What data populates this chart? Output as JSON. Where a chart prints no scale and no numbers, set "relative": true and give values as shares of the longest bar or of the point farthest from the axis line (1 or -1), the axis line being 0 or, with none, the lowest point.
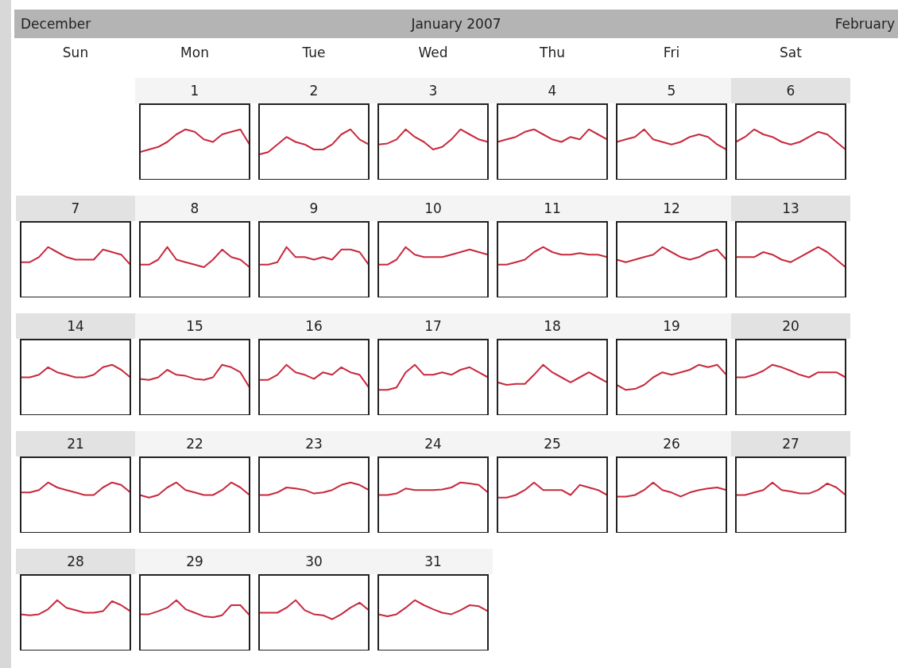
{
  "chart_data": [
    {
      "type": "other",
      "title": "January 2007",
      "annotations": [
        "December",
        "February",
        "Sun",
        "Mon",
        "Tue",
        "Wed",
        "Thu",
        "Fri",
        "Sat"
      ]
    },
    {
      "type": "line",
      "title": "1",
      "relative": true,
      "color": "#c8283c",
      "categories": [
        null,
        null,
        null,
        null,
        null,
        null,
        null,
        null,
        null,
        null,
        null,
        null,
        null
      ],
      "values": [
        0.55,
        0.6,
        0.65,
        0.75,
        0.9,
        1.0,
        0.95,
        0.8,
        0.75,
        0.9,
        0.95,
        1.0,
        0.7
      ]
    },
    {
      "type": "line",
      "title": "2",
      "relative": true,
      "color": "#c8283c",
      "categories": [
        null,
        null,
        null,
        null,
        null,
        null,
        null,
        null,
        null,
        null,
        null,
        null,
        null
      ],
      "values": [
        0.5,
        0.55,
        0.7,
        0.85,
        0.75,
        0.7,
        0.6,
        0.6,
        0.7,
        0.9,
        1.0,
        0.8,
        0.7
      ]
    },
    {
      "type": "line",
      "title": "3",
      "relative": true,
      "color": "#c8283c",
      "categories": [
        null,
        null,
        null,
        null,
        null,
        null,
        null,
        null,
        null,
        null,
        null,
        null,
        null
      ],
      "values": [
        0.7,
        0.72,
        0.8,
        1.0,
        0.85,
        0.75,
        0.6,
        0.65,
        0.8,
        1.0,
        0.9,
        0.8,
        0.75
      ]
    },
    {
      "type": "line",
      "title": "4",
      "relative": true,
      "color": "#c8283c",
      "categories": [
        null,
        null,
        null,
        null,
        null,
        null,
        null,
        null,
        null,
        null,
        null,
        null,
        null
      ],
      "values": [
        0.75,
        0.8,
        0.85,
        0.95,
        1.0,
        0.9,
        0.8,
        0.75,
        0.85,
        0.8,
        1.0,
        0.9,
        0.8
      ]
    },
    {
      "type": "line",
      "title": "5",
      "relative": true,
      "color": "#c8283c",
      "categories": [
        null,
        null,
        null,
        null,
        null,
        null,
        null,
        null,
        null,
        null,
        null,
        null,
        null
      ],
      "values": [
        0.75,
        0.8,
        0.85,
        1.0,
        0.8,
        0.75,
        0.7,
        0.75,
        0.85,
        0.9,
        0.85,
        0.7,
        0.6
      ]
    },
    {
      "type": "line",
      "title": "6",
      "relative": true,
      "color": "#c8283c",
      "categories": [
        null,
        null,
        null,
        null,
        null,
        null,
        null,
        null,
        null,
        null,
        null,
        null,
        null
      ],
      "values": [
        0.75,
        0.85,
        1.0,
        0.9,
        0.85,
        0.75,
        0.7,
        0.75,
        0.85,
        0.95,
        0.9,
        0.75,
        0.6
      ]
    },
    {
      "type": "line",
      "title": "7",
      "relative": true,
      "color": "#c8283c",
      "categories": [
        null,
        null,
        null,
        null,
        null,
        null,
        null,
        null,
        null,
        null,
        null,
        null,
        null
      ],
      "values": [
        0.7,
        0.7,
        0.8,
        1.0,
        0.9,
        0.8,
        0.75,
        0.75,
        0.75,
        0.95,
        0.9,
        0.85,
        0.65
      ]
    },
    {
      "type": "line",
      "title": "8",
      "relative": true,
      "color": "#c8283c",
      "categories": [
        null,
        null,
        null,
        null,
        null,
        null,
        null,
        null,
        null,
        null,
        null,
        null,
        null
      ],
      "values": [
        0.65,
        0.65,
        0.75,
        1.0,
        0.75,
        0.7,
        0.65,
        0.6,
        0.75,
        0.95,
        0.8,
        0.75,
        0.6
      ]
    },
    {
      "type": "line",
      "title": "9",
      "relative": true,
      "color": "#c8283c",
      "categories": [
        null,
        null,
        null,
        null,
        null,
        null,
        null,
        null,
        null,
        null,
        null,
        null,
        null
      ],
      "values": [
        0.65,
        0.65,
        0.7,
        1.0,
        0.8,
        0.8,
        0.75,
        0.8,
        0.75,
        0.95,
        0.95,
        0.9,
        0.65
      ]
    },
    {
      "type": "line",
      "title": "10",
      "relative": true,
      "color": "#c8283c",
      "categories": [
        null,
        null,
        null,
        null,
        null,
        null,
        null,
        null,
        null,
        null,
        null,
        null,
        null
      ],
      "values": [
        0.65,
        0.65,
        0.75,
        1.0,
        0.85,
        0.8,
        0.8,
        0.8,
        0.85,
        0.9,
        0.95,
        0.9,
        0.85
      ]
    },
    {
      "type": "line",
      "title": "11",
      "relative": true,
      "color": "#c8283c",
      "categories": [
        null,
        null,
        null,
        null,
        null,
        null,
        null,
        null,
        null,
        null,
        null,
        null,
        null
      ],
      "values": [
        0.65,
        0.65,
        0.7,
        0.75,
        0.9,
        1.0,
        0.9,
        0.85,
        0.85,
        0.88,
        0.85,
        0.85,
        0.8
      ]
    },
    {
      "type": "line",
      "title": "12",
      "relative": true,
      "color": "#c8283c",
      "categories": [
        null,
        null,
        null,
        null,
        null,
        null,
        null,
        null,
        null,
        null,
        null,
        null,
        null
      ],
      "values": [
        0.75,
        0.7,
        0.75,
        0.8,
        0.85,
        1.0,
        0.9,
        0.8,
        0.75,
        0.8,
        0.9,
        0.95,
        0.75
      ]
    },
    {
      "type": "line",
      "title": "13",
      "relative": true,
      "color": "#c8283c",
      "categories": [
        null,
        null,
        null,
        null,
        null,
        null,
        null,
        null,
        null,
        null,
        null,
        null,
        null
      ],
      "values": [
        0.8,
        0.8,
        0.8,
        0.9,
        0.85,
        0.75,
        0.7,
        0.8,
        0.9,
        1.0,
        0.9,
        0.75,
        0.6
      ]
    },
    {
      "type": "line",
      "title": "14",
      "relative": true,
      "color": "#c8283c",
      "categories": [
        null,
        null,
        null,
        null,
        null,
        null,
        null,
        null,
        null,
        null,
        null,
        null,
        null
      ],
      "values": [
        0.75,
        0.75,
        0.8,
        0.95,
        0.85,
        0.8,
        0.75,
        0.75,
        0.8,
        0.95,
        1.0,
        0.9,
        0.75
      ]
    },
    {
      "type": "line",
      "title": "15",
      "relative": true,
      "color": "#c8283c",
      "categories": [
        null,
        null,
        null,
        null,
        null,
        null,
        null,
        null,
        null,
        null,
        null,
        null,
        null
      ],
      "values": [
        0.72,
        0.7,
        0.75,
        0.9,
        0.8,
        0.78,
        0.72,
        0.7,
        0.75,
        1.0,
        0.95,
        0.85,
        0.55
      ]
    },
    {
      "type": "line",
      "title": "16",
      "relative": true,
      "color": "#c8283c",
      "categories": [
        null,
        null,
        null,
        null,
        null,
        null,
        null,
        null,
        null,
        null,
        null,
        null,
        null
      ],
      "values": [
        0.7,
        0.7,
        0.8,
        1.0,
        0.85,
        0.8,
        0.72,
        0.85,
        0.8,
        0.95,
        0.85,
        0.8,
        0.55
      ]
    },
    {
      "type": "line",
      "title": "17",
      "relative": true,
      "color": "#c8283c",
      "categories": [
        null,
        null,
        null,
        null,
        null,
        null,
        null,
        null,
        null,
        null,
        null,
        null,
        null
      ],
      "values": [
        0.5,
        0.5,
        0.55,
        0.85,
        1.0,
        0.8,
        0.8,
        0.85,
        0.8,
        0.9,
        0.95,
        0.85,
        0.75
      ]
    },
    {
      "type": "line",
      "title": "18",
      "relative": true,
      "color": "#c8283c",
      "categories": [
        null,
        null,
        null,
        null,
        null,
        null,
        null,
        null,
        null,
        null,
        null,
        null,
        null
      ],
      "values": [
        0.65,
        0.6,
        0.62,
        0.62,
        0.8,
        1.0,
        0.85,
        0.75,
        0.65,
        0.75,
        0.85,
        0.75,
        0.65
      ]
    },
    {
      "type": "line",
      "title": "19",
      "relative": true,
      "color": "#c8283c",
      "categories": [
        null,
        null,
        null,
        null,
        null,
        null,
        null,
        null,
        null,
        null,
        null,
        null,
        null
      ],
      "values": [
        0.6,
        0.5,
        0.52,
        0.6,
        0.75,
        0.85,
        0.8,
        0.85,
        0.9,
        1.0,
        0.95,
        1.0,
        0.8
      ]
    },
    {
      "type": "line",
      "title": "20",
      "relative": true,
      "color": "#c8283c",
      "categories": [
        null,
        null,
        null,
        null,
        null,
        null,
        null,
        null,
        null,
        null,
        null,
        null,
        null
      ],
      "values": [
        0.75,
        0.75,
        0.8,
        0.88,
        1.0,
        0.95,
        0.88,
        0.8,
        0.75,
        0.85,
        0.85,
        0.85,
        0.75
      ]
    },
    {
      "type": "line",
      "title": "21",
      "relative": true,
      "color": "#c8283c",
      "categories": [
        null,
        null,
        null,
        null,
        null,
        null,
        null,
        null,
        null,
        null,
        null,
        null,
        null
      ],
      "values": [
        0.8,
        0.8,
        0.85,
        1.0,
        0.9,
        0.85,
        0.8,
        0.75,
        0.75,
        0.9,
        1.0,
        0.95,
        0.8
      ]
    },
    {
      "type": "line",
      "title": "22",
      "relative": true,
      "color": "#c8283c",
      "categories": [
        null,
        null,
        null,
        null,
        null,
        null,
        null,
        null,
        null,
        null,
        null,
        null,
        null
      ],
      "values": [
        0.75,
        0.7,
        0.75,
        0.9,
        1.0,
        0.85,
        0.8,
        0.75,
        0.75,
        0.85,
        1.0,
        0.9,
        0.75
      ]
    },
    {
      "type": "line",
      "title": "23",
      "relative": true,
      "color": "#c8283c",
      "categories": [
        null,
        null,
        null,
        null,
        null,
        null,
        null,
        null,
        null,
        null,
        null,
        null,
        null
      ],
      "values": [
        0.75,
        0.75,
        0.8,
        0.9,
        0.88,
        0.85,
        0.78,
        0.8,
        0.85,
        0.95,
        1.0,
        0.95,
        0.85
      ]
    },
    {
      "type": "line",
      "title": "24",
      "relative": true,
      "color": "#c8283c",
      "categories": [
        null,
        null,
        null,
        null,
        null,
        null,
        null,
        null,
        null,
        null,
        null,
        null,
        null
      ],
      "values": [
        0.75,
        0.75,
        0.78,
        0.88,
        0.85,
        0.85,
        0.85,
        0.86,
        0.9,
        1.0,
        0.98,
        0.95,
        0.8
      ]
    },
    {
      "type": "line",
      "title": "25",
      "relative": true,
      "color": "#c8283c",
      "categories": [
        null,
        null,
        null,
        null,
        null,
        null,
        null,
        null,
        null,
        null,
        null,
        null,
        null
      ],
      "values": [
        0.7,
        0.7,
        0.75,
        0.85,
        1.0,
        0.85,
        0.85,
        0.85,
        0.75,
        0.95,
        0.9,
        0.85,
        0.75
      ]
    },
    {
      "type": "line",
      "title": "26",
      "relative": true,
      "color": "#c8283c",
      "categories": [
        null,
        null,
        null,
        null,
        null,
        null,
        null,
        null,
        null,
        null,
        null,
        null,
        null
      ],
      "values": [
        0.72,
        0.72,
        0.75,
        0.85,
        1.0,
        0.85,
        0.8,
        0.72,
        0.8,
        0.85,
        0.88,
        0.9,
        0.85
      ]
    },
    {
      "type": "line",
      "title": "27",
      "relative": true,
      "color": "#c8283c",
      "categories": [
        null,
        null,
        null,
        null,
        null,
        null,
        null,
        null,
        null,
        null,
        null,
        null,
        null
      ],
      "values": [
        0.75,
        0.75,
        0.8,
        0.85,
        1.0,
        0.85,
        0.82,
        0.78,
        0.78,
        0.85,
        0.98,
        0.9,
        0.75
      ]
    },
    {
      "type": "line",
      "title": "28",
      "relative": true,
      "color": "#c8283c",
      "categories": [
        null,
        null,
        null,
        null,
        null,
        null,
        null,
        null,
        null,
        null,
        null,
        null,
        null
      ],
      "values": [
        0.72,
        0.7,
        0.72,
        0.82,
        1.0,
        0.85,
        0.8,
        0.75,
        0.75,
        0.78,
        0.98,
        0.9,
        0.78
      ]
    },
    {
      "type": "line",
      "title": "29",
      "relative": true,
      "color": "#c8283c",
      "categories": [
        null,
        null,
        null,
        null,
        null,
        null,
        null,
        null,
        null,
        null,
        null,
        null,
        null
      ],
      "values": [
        0.72,
        0.72,
        0.78,
        0.85,
        1.0,
        0.82,
        0.75,
        0.68,
        0.66,
        0.7,
        0.9,
        0.9,
        0.7
      ]
    },
    {
      "type": "line",
      "title": "30",
      "relative": true,
      "color": "#c8283c",
      "categories": [
        null,
        null,
        null,
        null,
        null,
        null,
        null,
        null,
        null,
        null,
        null,
        null,
        null
      ],
      "values": [
        0.75,
        0.75,
        0.75,
        0.85,
        1.0,
        0.8,
        0.72,
        0.7,
        0.62,
        0.72,
        0.85,
        0.95,
        0.8
      ]
    },
    {
      "type": "line",
      "title": "31",
      "relative": true,
      "color": "#c8283c",
      "categories": [
        null,
        null,
        null,
        null,
        null,
        null,
        null,
        null,
        null,
        null,
        null,
        null,
        null
      ],
      "values": [
        0.72,
        0.68,
        0.72,
        0.85,
        1.0,
        0.9,
        0.82,
        0.75,
        0.72,
        0.8,
        0.9,
        0.88,
        0.78
      ]
    }
  ]
}
